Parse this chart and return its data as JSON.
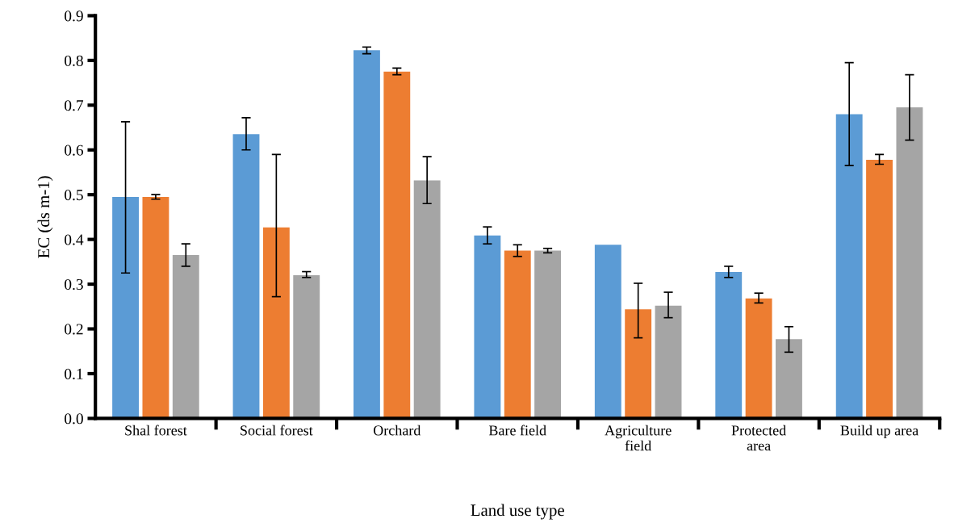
{
  "chart_data": {
    "type": "bar",
    "xlabel": "Land use type",
    "ylabel": "EC (ds m-1)",
    "categories": [
      "Shal forest",
      "Social forest",
      "Orchard",
      "Bare field",
      "Agriculture\nfield",
      "Protected\narea",
      "Build up area"
    ],
    "series": [
      {
        "color": "#5b9bd5",
        "values": [
          0.495,
          0.635,
          0.823,
          0.409,
          0.388,
          0.327,
          0.68
        ],
        "errors": [
          [
            0.325,
            0.663
          ],
          [
            0.6,
            0.672
          ],
          [
            0.815,
            0.83
          ],
          [
            0.39,
            0.428
          ],
          null,
          [
            0.315,
            0.34
          ],
          [
            0.565,
            0.795
          ]
        ]
      },
      {
        "color": "#ed7d31",
        "values": [
          0.495,
          0.427,
          0.775,
          0.375,
          0.244,
          0.268,
          0.578
        ],
        "errors": [
          [
            0.49,
            0.5
          ],
          [
            0.272,
            0.59
          ],
          [
            0.768,
            0.783
          ],
          [
            0.362,
            0.388
          ],
          [
            0.18,
            0.302
          ],
          [
            0.258,
            0.28
          ],
          [
            0.568,
            0.59
          ]
        ]
      },
      {
        "color": "#a5a5a5",
        "values": [
          0.365,
          0.32,
          0.532,
          0.375,
          0.252,
          0.177,
          0.695
        ],
        "errors": [
          [
            0.34,
            0.39
          ],
          [
            0.315,
            0.328
          ],
          [
            0.48,
            0.585
          ],
          [
            0.37,
            0.38
          ],
          [
            0.225,
            0.282
          ],
          [
            0.148,
            0.205
          ],
          [
            0.622,
            0.768
          ]
        ]
      }
    ],
    "ylim": [
      0,
      0.9
    ],
    "yticks": [
      {
        "value": 0,
        "label": "0.0"
      },
      0.1,
      0.2,
      0.3,
      0.4,
      0.5,
      0.6,
      0.7,
      0.8,
      0.9
    ],
    "grid": false
  }
}
